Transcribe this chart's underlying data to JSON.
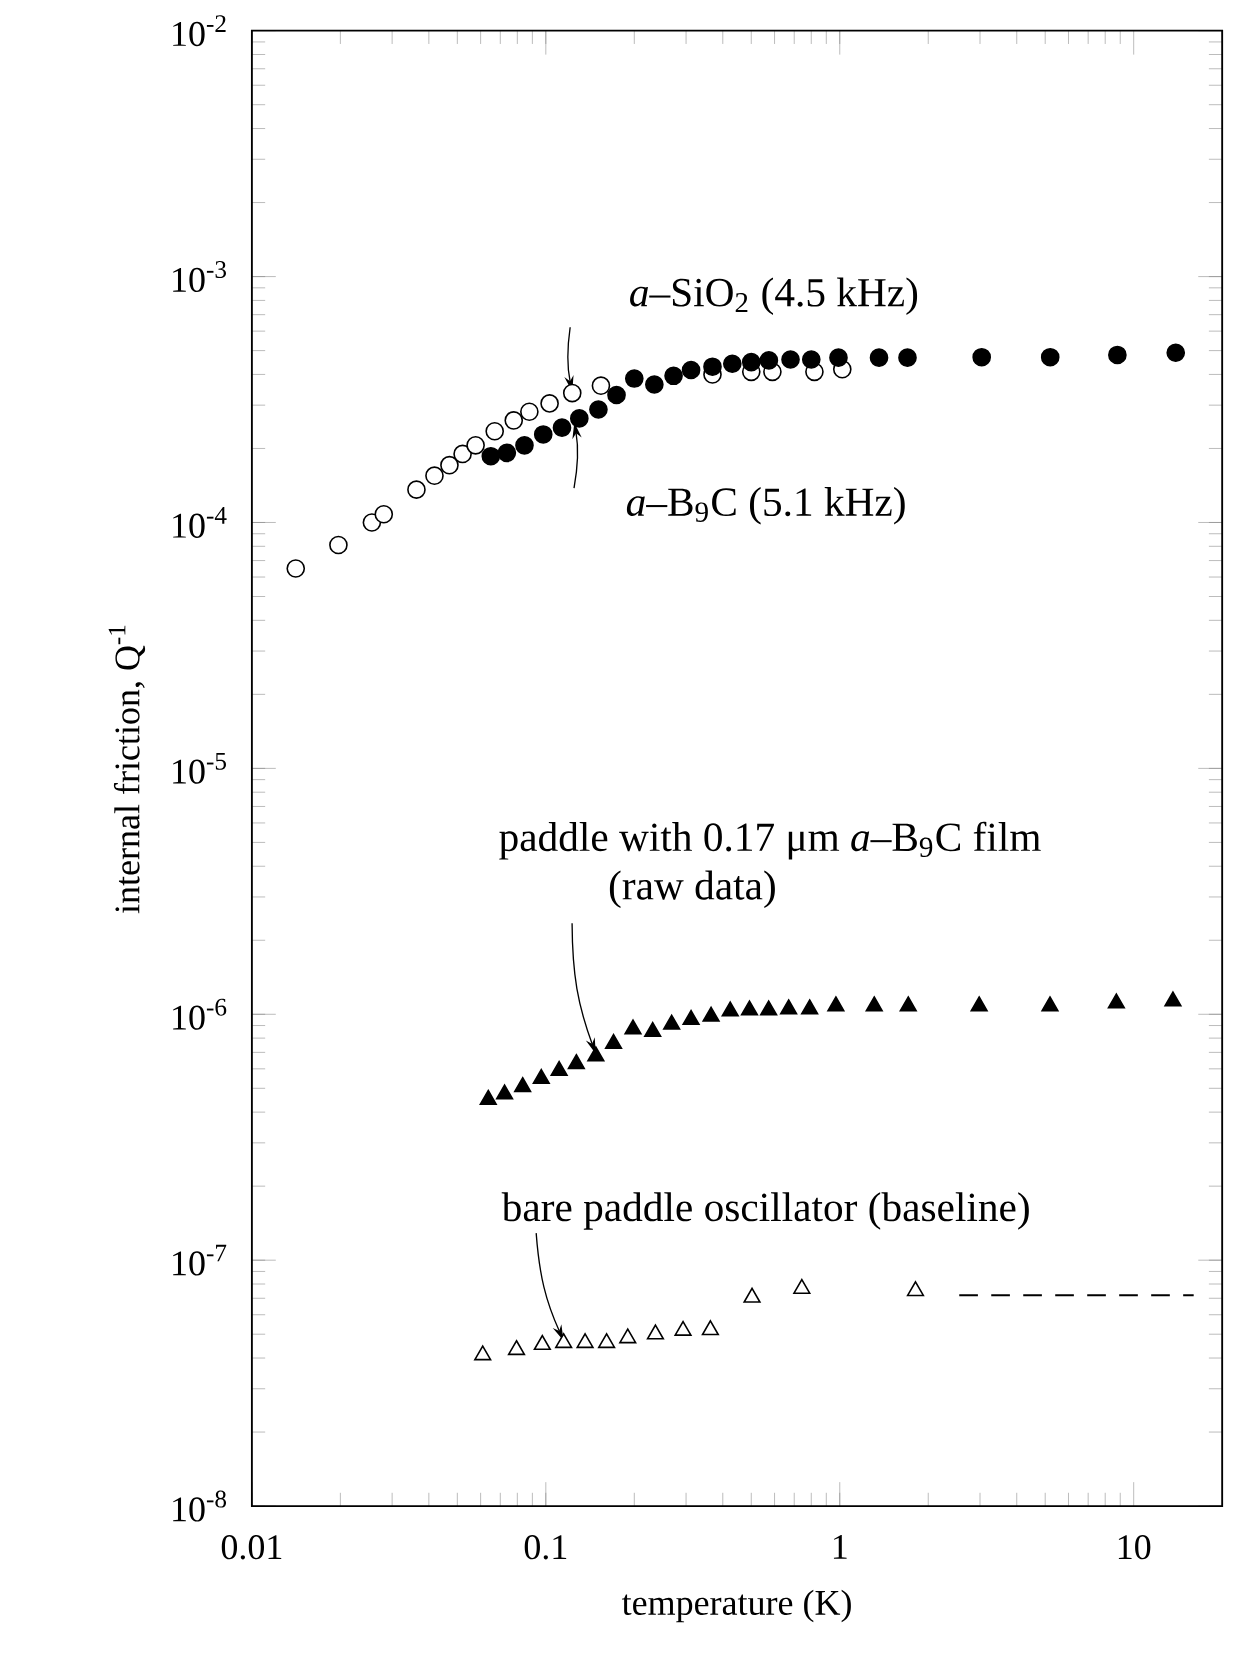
{
  "chart_data": {
    "type": "scatter",
    "xlabel": "temperature (K)",
    "ylabel": "internal friction, Q$^{-1}$",
    "log": "xy",
    "xlim": [
      0.01,
      20
    ],
    "ylim": [
      1e-08,
      0.01
    ],
    "xticks": [
      0.01,
      0.1,
      1,
      10
    ],
    "yticks": [
      {
        "value": 1e-08,
        "label": "10$^{-8}$"
      },
      {
        "value": 1e-07,
        "label": "10$^{-7}$"
      },
      {
        "value": 1e-06,
        "label": "10$^{-6}$"
      },
      {
        "value": 1e-05,
        "label": "10$^{-5}$"
      },
      {
        "value": 0.0001,
        "label": "10$^{-4}$"
      },
      {
        "value": 0.001,
        "label": "10$^{-3}$"
      },
      {
        "value": 0.01,
        "label": "10$^{-2}$"
      }
    ],
    "series": [
      {
        "marker": "circle",
        "color": "#000000",
        "x": [
          0.0141,
          0.0197,
          0.0256,
          0.0281,
          0.0363,
          0.0418,
          0.047,
          0.0521,
          0.0577,
          0.067,
          0.0778,
          0.0879,
          0.103,
          0.123,
          0.154,
          0.243,
          0.369,
          0.5,
          0.59,
          0.82,
          1.02
        ],
        "values": [
          6.5e-05,
          8.1e-05,
          0.0001,
          0.000108,
          0.000136,
          0.000155,
          0.000171,
          0.00019,
          0.000206,
          0.000235,
          0.00026,
          0.000282,
          0.000305,
          0.000336,
          0.00036,
          null,
          0.0004,
          0.00041,
          0.00041,
          0.00041,
          0.00042
        ]
      },
      {
        "marker": "circle",
        "color": "#000000",
        "x": [
          0.065,
          0.0737,
          0.0846,
          0.098,
          0.1135,
          0.13,
          0.151,
          0.174,
          0.2,
          0.234,
          0.272,
          0.312,
          0.369,
          0.431,
          0.5,
          0.574,
          0.68,
          0.8,
          0.99,
          1.36,
          1.7,
          3.04,
          5.2,
          8.8,
          13.9
        ],
        "values": [
          0.000186,
          0.000192,
          0.000206,
          0.000228,
          0.000243,
          0.000265,
          0.000288,
          0.00033,
          0.000385,
          0.000364,
          0.000395,
          0.000417,
          0.00043,
          0.000442,
          0.000449,
          0.000456,
          0.00046,
          0.00046,
          0.000468,
          0.000468,
          0.000468,
          0.00047,
          0.00047,
          0.00048,
          0.00049
        ]
      },
      {
        "marker": "triangle",
        "color": "#000000",
        "x": [
          0.0637,
          0.0724,
          0.0834,
          0.0965,
          0.111,
          0.127,
          0.148,
          0.17,
          0.198,
          0.231,
          0.268,
          0.312,
          0.365,
          0.424,
          0.493,
          0.573,
          0.67,
          0.79,
          0.97,
          1.31,
          1.71,
          2.98,
          5.19,
          8.73,
          13.6
        ],
        "values": [
          4.5e-07,
          4.73e-07,
          5.07e-07,
          5.47e-07,
          5.9e-07,
          6.29e-07,
          6.75e-07,
          7.6e-07,
          8.7e-07,
          8.5e-07,
          9.1e-07,
          9.5e-07,
          9.8e-07,
          1.03e-06,
          1.04e-06,
          1.04e-06,
          1.05e-06,
          1.05e-06,
          1.08e-06,
          1.08e-06,
          1.08e-06,
          1.08e-06,
          1.08e-06,
          1.11e-06,
          1.13e-06
        ]
      },
      {
        "marker": "triangle",
        "color": "#000000",
        "x": [
          0.061,
          0.0795,
          0.0973,
          0.115,
          0.136,
          0.161,
          0.19,
          0.236,
          0.293,
          0.363,
          0.503,
          0.743,
          1.81
        ],
        "values": [
          4.11e-08,
          4.32e-08,
          4.53e-08,
          4.61e-08,
          4.61e-08,
          4.61e-08,
          4.82e-08,
          5e-08,
          5.17e-08,
          5.2e-08,
          7.05e-08,
          7.66e-08,
          7.5e-08
        ]
      },
      {
        "type": "line",
        "marker": "none",
        "line_style": "dashed",
        "color": "#000000",
        "x": [
          2.55,
          16
        ],
        "values": [
          7.2e-08,
          7.2e-08
        ]
      }
    ],
    "annotations": [
      {
        "text": "*a*–SiO$_{2}$ (4.5 kHz)",
        "x": 0.123,
        "y": 0.00034
      },
      {
        "text": "*a*–B$_{9}$C (5.1 kHz)",
        "x": 0.125,
        "y": 0.000255
      },
      "paddle with 0.17 μm *a*–B$_{9}$C film",
      {
        "text": "(raw data)",
        "x": 0.148,
        "y": 6.9e-07
      },
      {
        "text": "bare paddle oscillator (baseline)",
        "x": 0.115,
        "y": 4.7e-08
      }
    ]
  }
}
